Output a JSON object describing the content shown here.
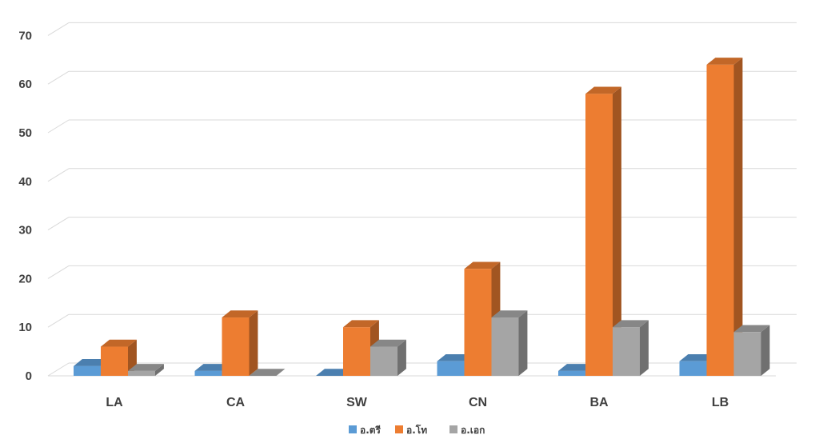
{
  "chart_data": {
    "type": "bar",
    "categories": [
      "LA",
      "CA",
      "SW",
      "CN",
      "BA",
      "LB"
    ],
    "series": [
      {
        "name": "อ.ตรี",
        "color": "#5B9BD5",
        "values": [
          2,
          1,
          0,
          3,
          1,
          3
        ]
      },
      {
        "name": "อ.โท",
        "color": "#ED7D31",
        "values": [
          6,
          12,
          10,
          22,
          58,
          64
        ]
      },
      {
        "name": "อ.เอก",
        "color": "#A5A5A5",
        "values": [
          1,
          0,
          6,
          12,
          10,
          9
        ]
      }
    ],
    "yticks": [
      "0",
      "10",
      "20",
      "30",
      "40",
      "50",
      "60",
      "70"
    ],
    "ylim": [
      0,
      70
    ],
    "grid": true,
    "legend_position": "bottom",
    "style": "3d-clustered-column"
  }
}
